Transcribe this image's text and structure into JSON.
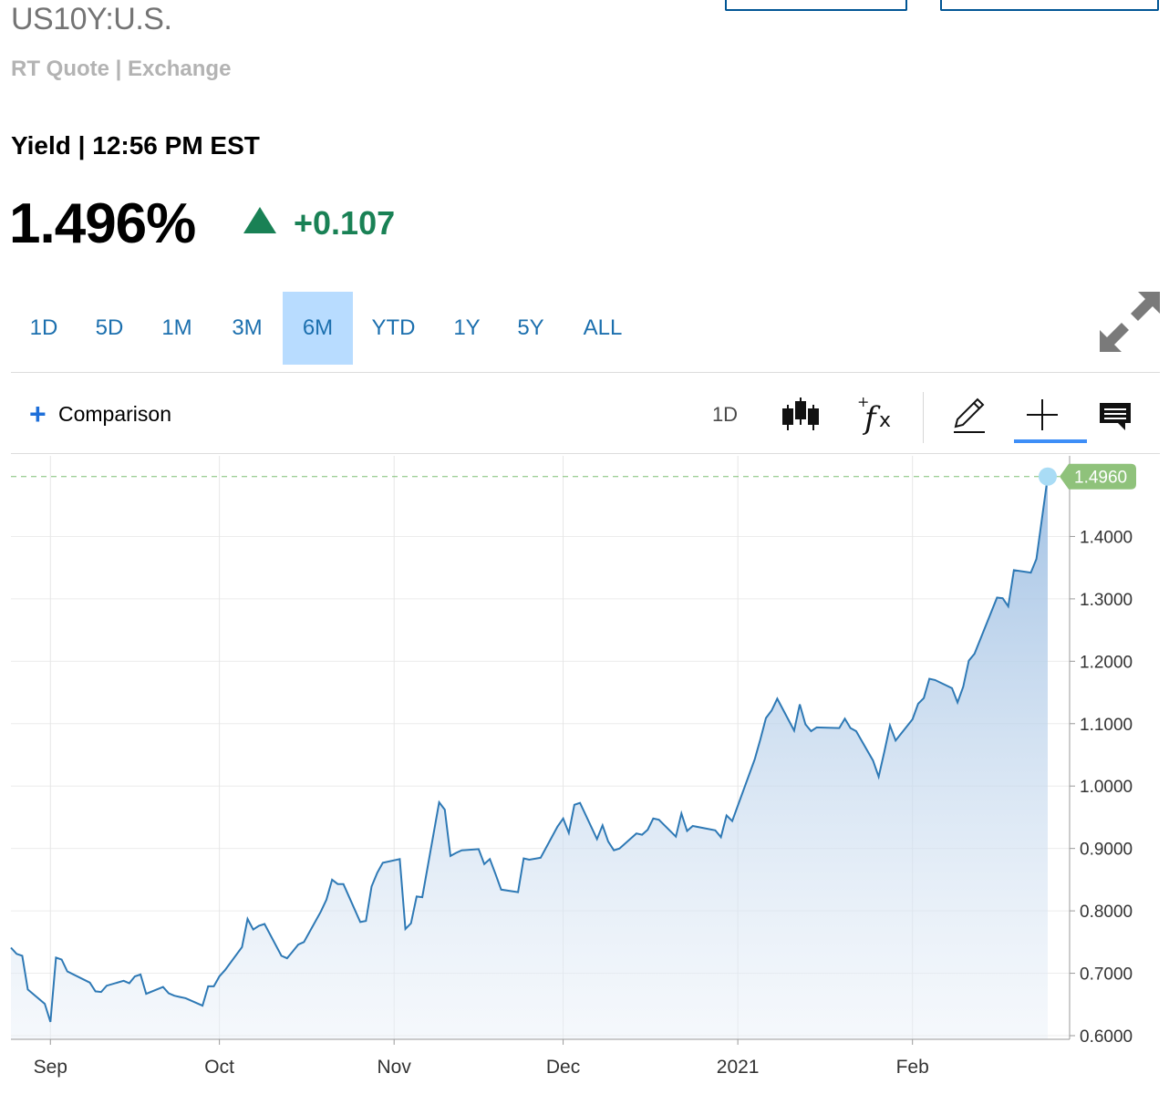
{
  "header": {
    "symbol": "US10Y:U.S.",
    "subline": "RT Quote | Exchange",
    "yield_line": "Yield | 12:56 PM EST",
    "price": "1.496%",
    "change": "+0.107",
    "up_color": "#198155"
  },
  "range_tabs": [
    {
      "label": "1D",
      "active": false
    },
    {
      "label": "5D",
      "active": false
    },
    {
      "label": "1M",
      "active": false
    },
    {
      "label": "3M",
      "active": false
    },
    {
      "label": "6M",
      "active": true
    },
    {
      "label": "YTD",
      "active": false
    },
    {
      "label": "1Y",
      "active": false
    },
    {
      "label": "5Y",
      "active": false
    },
    {
      "label": "ALL",
      "active": false
    }
  ],
  "toolbar": {
    "comparison_label": "Comparison",
    "interval_label": "1D",
    "icons": [
      "candlestick-icon",
      "function-icon",
      "pencil-icon",
      "crosshair-icon",
      "comment-icon"
    ],
    "active_tool": "crosshair-icon"
  },
  "chart_data": {
    "type": "area",
    "title": "",
    "xlabel": "",
    "ylabel": "",
    "ylim": [
      0.6,
      1.5
    ],
    "yticks": [
      0.6,
      0.7,
      0.8,
      0.9,
      1.0,
      1.1,
      1.2,
      1.3,
      1.4
    ],
    "ytick_labels": [
      "0.6000",
      "0.7000",
      "0.8000",
      "0.9000",
      "1.0000",
      "1.1000",
      "1.2000",
      "1.3000",
      "1.4000"
    ],
    "x_start": "2020-08-25",
    "x_end": "2021-02-25",
    "xticks": [
      {
        "label": "Sep",
        "date": "2020-09-01"
      },
      {
        "label": "Oct",
        "date": "2020-10-01"
      },
      {
        "label": "Nov",
        "date": "2020-11-01"
      },
      {
        "label": "Dec",
        "date": "2020-12-01"
      },
      {
        "label": "2021",
        "date": "2021-01-01"
      },
      {
        "label": "Feb",
        "date": "2021-02-01"
      }
    ],
    "last_value_label": "1.4960",
    "line_color": "#2e79b5",
    "fill_color": "#a9c6e6",
    "last_label_color": "#8fc27b",
    "series": [
      {
        "values": [
          [
            "2020-08-25",
            0.741
          ],
          [
            "2020-08-26",
            0.731
          ],
          [
            "2020-08-27",
            0.728
          ],
          [
            "2020-08-28",
            0.674
          ],
          [
            "2020-08-31",
            0.651
          ],
          [
            "2020-09-01",
            0.622
          ],
          [
            "2020-09-02",
            0.725
          ],
          [
            "2020-09-03",
            0.722
          ],
          [
            "2020-09-04",
            0.703
          ],
          [
            "2020-09-08",
            0.685
          ],
          [
            "2020-09-09",
            0.671
          ],
          [
            "2020-09-10",
            0.67
          ],
          [
            "2020-09-11",
            0.68
          ],
          [
            "2020-09-14",
            0.688
          ],
          [
            "2020-09-15",
            0.684
          ],
          [
            "2020-09-16",
            0.695
          ],
          [
            "2020-09-17",
            0.698
          ],
          [
            "2020-09-18",
            0.667
          ],
          [
            "2020-09-21",
            0.678
          ],
          [
            "2020-09-22",
            0.668
          ],
          [
            "2020-09-23",
            0.664
          ],
          [
            "2020-09-24",
            0.662
          ],
          [
            "2020-09-25",
            0.66
          ],
          [
            "2020-09-28",
            0.648
          ],
          [
            "2020-09-29",
            0.679
          ],
          [
            "2020-09-30",
            0.679
          ],
          [
            "2020-10-01",
            0.695
          ],
          [
            "2020-10-02",
            0.705
          ],
          [
            "2020-10-05",
            0.742
          ],
          [
            "2020-10-06",
            0.787
          ],
          [
            "2020-10-07",
            0.77
          ],
          [
            "2020-10-08",
            0.776
          ],
          [
            "2020-10-09",
            0.779
          ],
          [
            "2020-10-12",
            0.728
          ],
          [
            "2020-10-13",
            0.724
          ],
          [
            "2020-10-14",
            0.735
          ],
          [
            "2020-10-15",
            0.746
          ],
          [
            "2020-10-16",
            0.75
          ],
          [
            "2020-10-19",
            0.799
          ],
          [
            "2020-10-20",
            0.818
          ],
          [
            "2020-10-21",
            0.85
          ],
          [
            "2020-10-22",
            0.843
          ],
          [
            "2020-10-23",
            0.843
          ],
          [
            "2020-10-26",
            0.782
          ],
          [
            "2020-10-27",
            0.784
          ],
          [
            "2020-10-28",
            0.839
          ],
          [
            "2020-10-29",
            0.861
          ],
          [
            "2020-10-30",
            0.877
          ],
          [
            "2020-11-02",
            0.883
          ],
          [
            "2020-11-03",
            0.771
          ],
          [
            "2020-11-04",
            0.78
          ],
          [
            "2020-11-05",
            0.823
          ],
          [
            "2020-11-06",
            0.822
          ],
          [
            "2020-11-09",
            0.974
          ],
          [
            "2020-11-10",
            0.962
          ],
          [
            "2020-11-11",
            0.888
          ],
          [
            "2020-11-12",
            0.893
          ],
          [
            "2020-11-13",
            0.897
          ],
          [
            "2020-11-16",
            0.899
          ],
          [
            "2020-11-17",
            0.875
          ],
          [
            "2020-11-18",
            0.883
          ],
          [
            "2020-11-19",
            0.859
          ],
          [
            "2020-11-20",
            0.834
          ],
          [
            "2020-11-23",
            0.83
          ],
          [
            "2020-11-24",
            0.884
          ],
          [
            "2020-11-25",
            0.882
          ],
          [
            "2020-11-27",
            0.885
          ],
          [
            "2020-11-30",
            0.935
          ],
          [
            "2020-12-01",
            0.948
          ],
          [
            "2020-12-02",
            0.925
          ],
          [
            "2020-12-03",
            0.97
          ],
          [
            "2020-12-04",
            0.973
          ],
          [
            "2020-12-07",
            0.915
          ],
          [
            "2020-12-08",
            0.937
          ],
          [
            "2020-12-09",
            0.911
          ],
          [
            "2020-12-10",
            0.897
          ],
          [
            "2020-12-11",
            0.9
          ],
          [
            "2020-12-14",
            0.924
          ],
          [
            "2020-12-15",
            0.922
          ],
          [
            "2020-12-16",
            0.93
          ],
          [
            "2020-12-17",
            0.948
          ],
          [
            "2020-12-18",
            0.946
          ],
          [
            "2020-12-21",
            0.919
          ],
          [
            "2020-12-22",
            0.956
          ],
          [
            "2020-12-23",
            0.928
          ],
          [
            "2020-12-24",
            0.936
          ],
          [
            "2020-12-28",
            0.929
          ],
          [
            "2020-12-29",
            0.918
          ],
          [
            "2020-12-30",
            0.953
          ],
          [
            "2020-12-31",
            0.944
          ],
          [
            "2021-01-04",
            1.043
          ],
          [
            "2021-01-05",
            1.075
          ],
          [
            "2021-01-06",
            1.109
          ],
          [
            "2021-01-07",
            1.121
          ],
          [
            "2021-01-08",
            1.14
          ],
          [
            "2021-01-11",
            1.089
          ],
          [
            "2021-01-12",
            1.131
          ],
          [
            "2021-01-13",
            1.099
          ],
          [
            "2021-01-14",
            1.088
          ],
          [
            "2021-01-15",
            1.094
          ],
          [
            "2021-01-19",
            1.093
          ],
          [
            "2021-01-20",
            1.108
          ],
          [
            "2021-01-21",
            1.093
          ],
          [
            "2021-01-22",
            1.088
          ],
          [
            "2021-01-25",
            1.041
          ],
          [
            "2021-01-26",
            1.015
          ],
          [
            "2021-01-27",
            1.055
          ],
          [
            "2021-01-28",
            1.097
          ],
          [
            "2021-01-29",
            1.073
          ],
          [
            "2021-02-01",
            1.107
          ],
          [
            "2021-02-02",
            1.132
          ],
          [
            "2021-02-03",
            1.141
          ],
          [
            "2021-02-04",
            1.172
          ],
          [
            "2021-02-05",
            1.17
          ],
          [
            "2021-02-08",
            1.157
          ],
          [
            "2021-02-09",
            1.134
          ],
          [
            "2021-02-10",
            1.159
          ],
          [
            "2021-02-11",
            1.201
          ],
          [
            "2021-02-12",
            1.212
          ],
          [
            "2021-02-16",
            1.302
          ],
          [
            "2021-02-17",
            1.301
          ],
          [
            "2021-02-18",
            1.288
          ],
          [
            "2021-02-19",
            1.346
          ],
          [
            "2021-02-22",
            1.342
          ],
          [
            "2021-02-23",
            1.364
          ],
          [
            "2021-02-25",
            1.496
          ]
        ]
      }
    ]
  }
}
